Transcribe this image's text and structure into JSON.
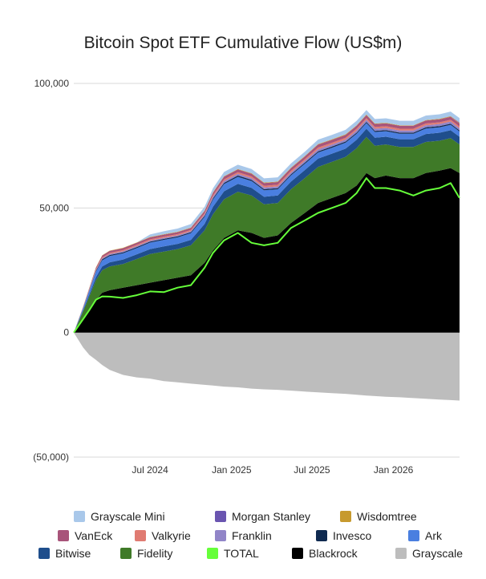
{
  "chart_data": {
    "type": "area",
    "stacked": true,
    "title": "Bitcoin Spot ETF Cumulative Flow (US$m)",
    "xlabel": "",
    "ylabel": "",
    "ylim": [
      -50000,
      100000
    ],
    "x_range": [
      "2024-01-11",
      "2026-05-30"
    ],
    "grid": true,
    "legend_position": "bottom",
    "y_ticks": [
      {
        "value": 100000,
        "label": "100,000"
      },
      {
        "value": 50000,
        "label": "50,000"
      },
      {
        "value": 0,
        "label": "0"
      },
      {
        "value": -50000,
        "label": "(50,000)"
      }
    ],
    "x_ticks": [
      {
        "value": "2024-07-01",
        "label": "Jul 2024"
      },
      {
        "value": "2025-01-01",
        "label": "Jan 2025"
      },
      {
        "value": "2025-07-01",
        "label": "Jul 2025"
      },
      {
        "value": "2026-01-01",
        "label": "Jan 2026"
      }
    ],
    "x": [
      "2024-01-11",
      "2024-02-01",
      "2024-02-15",
      "2024-03-01",
      "2024-03-15",
      "2024-04-01",
      "2024-05-01",
      "2024-06-01",
      "2024-07-01",
      "2024-08-01",
      "2024-09-01",
      "2024-10-01",
      "2024-11-01",
      "2024-11-20",
      "2024-12-15",
      "2025-01-15",
      "2025-02-15",
      "2025-03-15",
      "2025-04-15",
      "2025-05-15",
      "2025-06-15",
      "2025-07-15",
      "2025-08-15",
      "2025-09-15",
      "2025-10-10",
      "2025-11-01",
      "2025-11-20",
      "2025-12-15",
      "2026-01-15",
      "2026-02-15",
      "2026-03-15",
      "2026-04-15",
      "2026-05-10",
      "2026-05-30"
    ],
    "series": [
      {
        "name": "Grayscale",
        "color": "#bdbdbd",
        "values": [
          0,
          -6000,
          -9000,
          -11000,
          -13000,
          -15000,
          -17000,
          -18000,
          -18500,
          -19500,
          -20000,
          -20500,
          -21000,
          -21300,
          -21700,
          -22000,
          -22500,
          -22800,
          -23000,
          -23300,
          -23700,
          -24000,
          -24300,
          -24600,
          -25000,
          -25300,
          -25500,
          -25800,
          -26000,
          -26300,
          -26600,
          -26900,
          -27100,
          -27300
        ]
      },
      {
        "name": "Blackrock",
        "color": "#000000",
        "values": [
          0,
          5000,
          9000,
          13000,
          16000,
          17000,
          18000,
          19000,
          20000,
          21000,
          22000,
          23000,
          28000,
          33000,
          38000,
          41000,
          40000,
          38000,
          39000,
          44000,
          48000,
          52000,
          54000,
          56000,
          59000,
          64000,
          62000,
          63000,
          62000,
          62000,
          64000,
          65000,
          66000,
          64000
        ]
      },
      {
        "name": "Fidelity",
        "color": "#3f7a28",
        "values": [
          0,
          3500,
          5500,
          8000,
          9000,
          9500,
          9500,
          10500,
          11500,
          11500,
          11500,
          12000,
          13000,
          14500,
          15500,
          15500,
          15000,
          13500,
          13000,
          13500,
          14000,
          14500,
          14500,
          14500,
          15000,
          14500,
          13000,
          12500,
          12500,
          12500,
          12500,
          12000,
          12000,
          11500
        ]
      },
      {
        "name": "Bitwise",
        "color": "#1f4e8c",
        "values": [
          0,
          400,
          800,
          1200,
          1500,
          1700,
          1800,
          1900,
          2000,
          2100,
          2100,
          2200,
          2600,
          3000,
          3200,
          3200,
          3100,
          3000,
          3000,
          3100,
          3200,
          3300,
          3300,
          3300,
          3400,
          3300,
          3200,
          3100,
          3100,
          3100,
          3200,
          3200,
          3200,
          3100
        ]
      },
      {
        "name": "Ark",
        "color": "#4a7fe0",
        "values": [
          0,
          800,
          1500,
          2200,
          2500,
          2500,
          2500,
          2500,
          2600,
          2600,
          2600,
          2700,
          2800,
          2900,
          2900,
          2800,
          2700,
          2600,
          2500,
          2500,
          2500,
          2500,
          2400,
          2400,
          2400,
          2300,
          2300,
          2200,
          2200,
          2200,
          2200,
          2200,
          2200,
          2100
        ]
      },
      {
        "name": "Invesco",
        "color": "#0f2a50",
        "values": [
          0,
          150,
          250,
          350,
          400,
          400,
          400,
          400,
          400,
          400,
          400,
          400,
          450,
          500,
          500,
          500,
          500,
          450,
          450,
          450,
          450,
          450,
          450,
          450,
          450,
          450,
          450,
          450,
          450,
          450,
          450,
          450,
          450,
          450
        ]
      },
      {
        "name": "Franklin",
        "color": "#9185c8",
        "values": [
          0,
          100,
          200,
          300,
          350,
          400,
          400,
          400,
          400,
          400,
          400,
          400,
          500,
          600,
          700,
          700,
          700,
          700,
          700,
          700,
          750,
          800,
          800,
          800,
          850,
          850,
          850,
          850,
          850,
          850,
          850,
          850,
          850,
          850
        ]
      },
      {
        "name": "Valkyrie",
        "color": "#e07b72",
        "values": [
          0,
          150,
          250,
          350,
          400,
          450,
          450,
          500,
          500,
          500,
          500,
          500,
          550,
          600,
          650,
          650,
          650,
          650,
          650,
          650,
          650,
          700,
          700,
          700,
          700,
          700,
          700,
          700,
          700,
          700,
          700,
          700,
          700,
          700
        ]
      },
      {
        "name": "VanEck",
        "color": "#a8547a",
        "values": [
          0,
          200,
          400,
          600,
          700,
          800,
          800,
          800,
          800,
          800,
          800,
          800,
          900,
          1000,
          1100,
          1100,
          1100,
          1100,
          1100,
          1100,
          1100,
          1200,
          1200,
          1200,
          1200,
          1200,
          1200,
          1200,
          1200,
          1200,
          1200,
          1200,
          1200,
          1200
        ]
      },
      {
        "name": "Wisdomtree",
        "color": "#c79a2e",
        "values": [
          0,
          50,
          100,
          150,
          150,
          150,
          150,
          150,
          150,
          150,
          150,
          150,
          150,
          200,
          200,
          200,
          200,
          200,
          200,
          200,
          200,
          200,
          200,
          200,
          200,
          200,
          200,
          200,
          200,
          200,
          200,
          200,
          200,
          200
        ]
      },
      {
        "name": "Morgan Stanley",
        "color": "#6a55b0",
        "values": [
          0,
          0,
          0,
          0,
          0,
          0,
          0,
          0,
          0,
          0,
          0,
          0,
          0,
          0,
          0,
          0,
          0,
          0,
          0,
          0,
          0,
          0,
          0,
          0,
          0,
          0,
          0,
          0,
          0,
          0,
          0,
          0,
          100,
          200
        ]
      },
      {
        "name": "Grayscale Mini",
        "color": "#a9c8ea",
        "values": [
          0,
          0,
          0,
          0,
          0,
          0,
          0,
          0,
          1000,
          1200,
          1300,
          1400,
          1500,
          1600,
          1700,
          1700,
          1700,
          1700,
          1700,
          1700,
          1700,
          1800,
          1800,
          1800,
          1800,
          1800,
          1800,
          1800,
          1800,
          1800,
          1800,
          1800,
          1800,
          1800
        ]
      }
    ],
    "total_series": {
      "name": "TOTAL",
      "color": "#66ff3a",
      "values": [
        0,
        5350,
        9000,
        13150,
        14500,
        14400,
        13900,
        15000,
        16500,
        16200,
        18000,
        19000,
        26000,
        32000,
        37000,
        40000,
        36000,
        35000,
        36000,
        42000,
        45000,
        48000,
        50000,
        52000,
        56000,
        62000,
        58000,
        58000,
        57000,
        55000,
        57000,
        58000,
        60000,
        54000
      ]
    },
    "legend": [
      {
        "name": "Grayscale Mini",
        "color": "#a9c8ea"
      },
      {
        "name": "Morgan Stanley",
        "color": "#6a55b0"
      },
      {
        "name": "Wisdomtree",
        "color": "#c79a2e"
      },
      {
        "name": "VanEck",
        "color": "#a8547a"
      },
      {
        "name": "Valkyrie",
        "color": "#e07b72"
      },
      {
        "name": "Franklin",
        "color": "#9185c8"
      },
      {
        "name": "Invesco",
        "color": "#0f2a50"
      },
      {
        "name": "Ark",
        "color": "#4a7fe0"
      },
      {
        "name": "Bitwise",
        "color": "#1f4e8c"
      },
      {
        "name": "Fidelity",
        "color": "#3f7a28"
      },
      {
        "name": "TOTAL",
        "color": "#66ff3a"
      },
      {
        "name": "Blackrock",
        "color": "#000000"
      },
      {
        "name": "Grayscale",
        "color": "#bdbdbd"
      }
    ]
  }
}
